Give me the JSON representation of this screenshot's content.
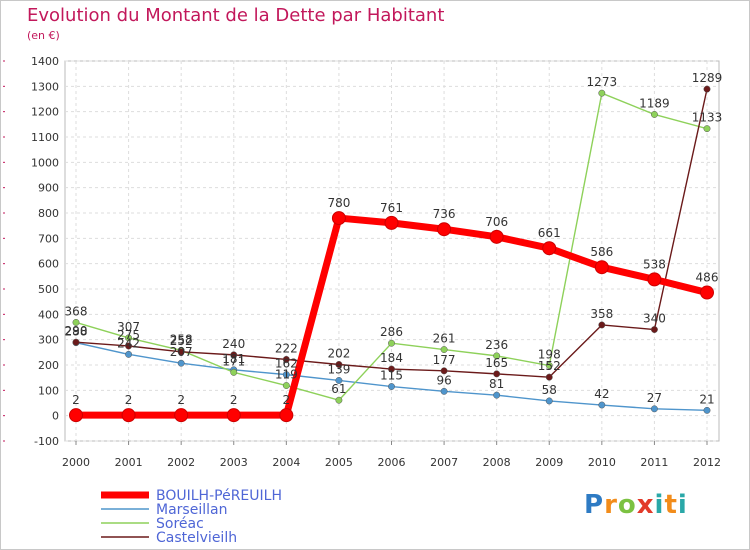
{
  "title": "Evolution du Montant de la Dette par Habitant",
  "unit_label": "(en €)",
  "logo_text": "Proxiti",
  "chart_data": {
    "type": "line",
    "title": "Evolution du Montant de la Dette par Habitant",
    "subtitle": "(en €)",
    "x": [
      2000,
      2001,
      2002,
      2003,
      2004,
      2005,
      2006,
      2007,
      2008,
      2009,
      2010,
      2011,
      2012
    ],
    "ylim": [
      -100,
      1400
    ],
    "yticks": [
      -100,
      0,
      100,
      200,
      300,
      400,
      500,
      600,
      700,
      800,
      900,
      1000,
      1100,
      1200,
      1300,
      1400
    ],
    "grid": true,
    "legend_position": "bottom-left",
    "series": [
      {
        "name": "BOUILH-PéREUILH",
        "color": "#ff0000",
        "values": [
          2,
          2,
          2,
          2,
          2,
          780,
          761,
          736,
          706,
          661,
          586,
          538,
          486
        ]
      },
      {
        "name": "Marseillan",
        "color": "#4f95cc",
        "values": [
          288,
          242,
          207,
          181,
          162,
          139,
          115,
          96,
          81,
          58,
          42,
          27,
          21
        ]
      },
      {
        "name": "Soréac",
        "color": "#8ed15a",
        "values": [
          368,
          307,
          258,
          171,
          119,
          61,
          286,
          261,
          236,
          198,
          1273,
          1189,
          1133
        ]
      },
      {
        "name": "Castelvieilh",
        "color": "#6b1a1a",
        "values": [
          290,
          275,
          252,
          240,
          222,
          202,
          184,
          177,
          165,
          152,
          358,
          340,
          1289
        ]
      }
    ]
  }
}
